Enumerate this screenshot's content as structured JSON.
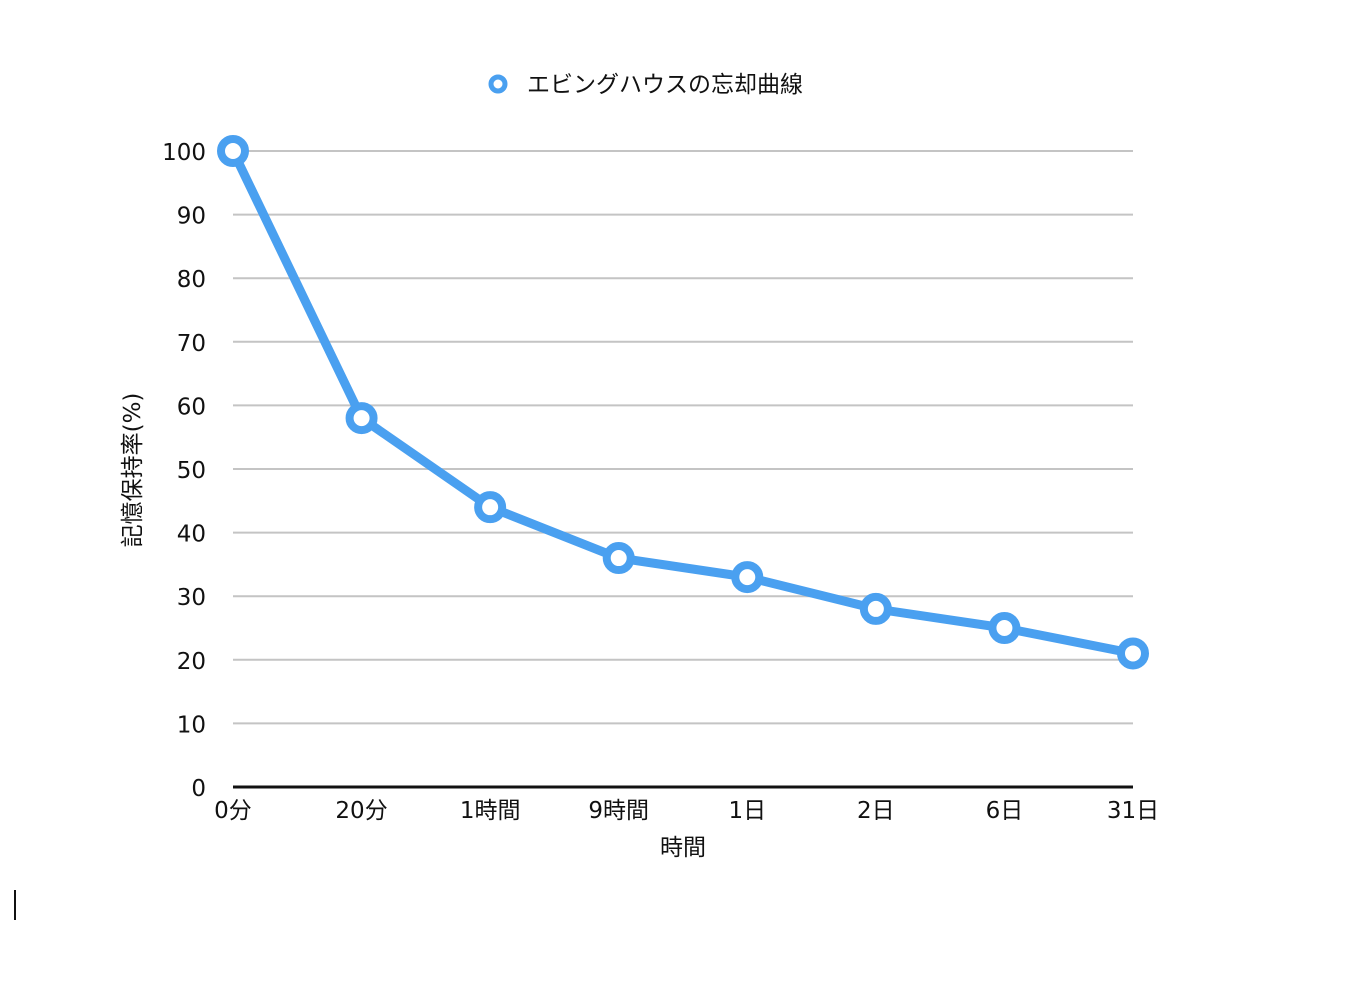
{
  "chart_data": {
    "type": "line",
    "categories": [
      "0分",
      "20分",
      "1時間",
      "9時間",
      "1日",
      "2日",
      "6日",
      "31日"
    ],
    "series": [
      {
        "name": "エビングハウスの忘却曲線",
        "values": [
          100,
          58,
          44,
          36,
          33,
          28,
          25,
          21
        ],
        "color": "#4aa0f0"
      }
    ],
    "xlabel": "時間",
    "ylabel": "記憶保持率(%)",
    "ylim": [
      0,
      100
    ],
    "yticks": [
      0,
      10,
      20,
      30,
      40,
      50,
      60,
      70,
      80,
      90,
      100
    ],
    "grid": true,
    "legend_position": "top-center",
    "colors": {
      "grid": "#c4c4c4",
      "axis": "#111111",
      "text": "#111111"
    }
  }
}
